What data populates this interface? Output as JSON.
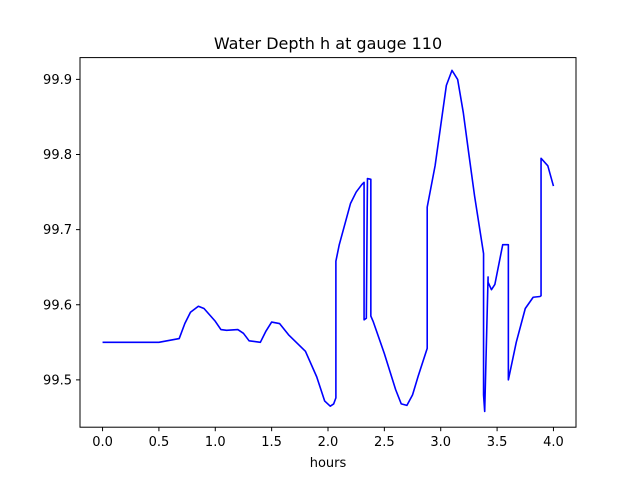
{
  "chart_data": {
    "type": "line",
    "title": "Water Depth h at gauge 110",
    "xlabel": "hours",
    "ylabel": "",
    "xlim": [
      -0.2,
      4.2
    ],
    "ylim": [
      99.437,
      99.929
    ],
    "xticks": [
      0.0,
      0.5,
      1.0,
      1.5,
      2.0,
      2.5,
      3.0,
      3.5,
      4.0
    ],
    "xtick_labels": [
      "0.0",
      "0.5",
      "1.0",
      "1.5",
      "2.0",
      "2.5",
      "3.0",
      "3.5",
      "4.0"
    ],
    "yticks": [
      99.5,
      99.6,
      99.7,
      99.8,
      99.9
    ],
    "ytick_labels": [
      "99.5",
      "99.6",
      "99.7",
      "99.8",
      "99.9"
    ],
    "grid": false,
    "series": [
      {
        "color": "#0000ff",
        "x": [
          0.0,
          0.5,
          0.68,
          0.73,
          0.78,
          0.85,
          0.9,
          1.0,
          1.05,
          1.1,
          1.2,
          1.25,
          1.3,
          1.4,
          1.45,
          1.5,
          1.57,
          1.65,
          1.8,
          1.9,
          1.97,
          2.02,
          2.05,
          2.07,
          2.07,
          2.1,
          2.2,
          2.25,
          2.3,
          2.32,
          2.32,
          2.34,
          2.35,
          2.35,
          2.38,
          2.38,
          2.4,
          2.5,
          2.6,
          2.65,
          2.7,
          2.75,
          2.8,
          2.88,
          2.88,
          2.95,
          3.05,
          3.1,
          3.15,
          3.2,
          3.25,
          3.3,
          3.38,
          3.38,
          3.39,
          3.42,
          3.42,
          3.45,
          3.48,
          3.55,
          3.6,
          3.6,
          3.67,
          3.75,
          3.82,
          3.88,
          3.89,
          3.89,
          3.95,
          4.0
        ],
        "y": [
          99.55,
          99.55,
          99.555,
          99.575,
          99.59,
          99.598,
          99.595,
          99.578,
          99.567,
          99.566,
          99.567,
          99.562,
          99.552,
          99.55,
          99.565,
          99.577,
          99.575,
          99.56,
          99.538,
          99.504,
          99.472,
          99.465,
          99.468,
          99.476,
          99.658,
          99.68,
          99.735,
          99.75,
          99.76,
          99.763,
          99.58,
          99.582,
          99.768,
          99.768,
          99.767,
          99.585,
          99.578,
          99.535,
          99.487,
          99.468,
          99.466,
          99.48,
          99.505,
          99.542,
          99.73,
          99.785,
          99.892,
          99.912,
          99.9,
          99.856,
          99.8,
          99.745,
          99.668,
          99.48,
          99.458,
          99.637,
          99.63,
          99.62,
          99.627,
          99.68,
          99.68,
          99.5,
          99.55,
          99.595,
          99.61,
          99.611,
          99.612,
          99.795,
          99.785,
          99.758
        ]
      }
    ]
  }
}
